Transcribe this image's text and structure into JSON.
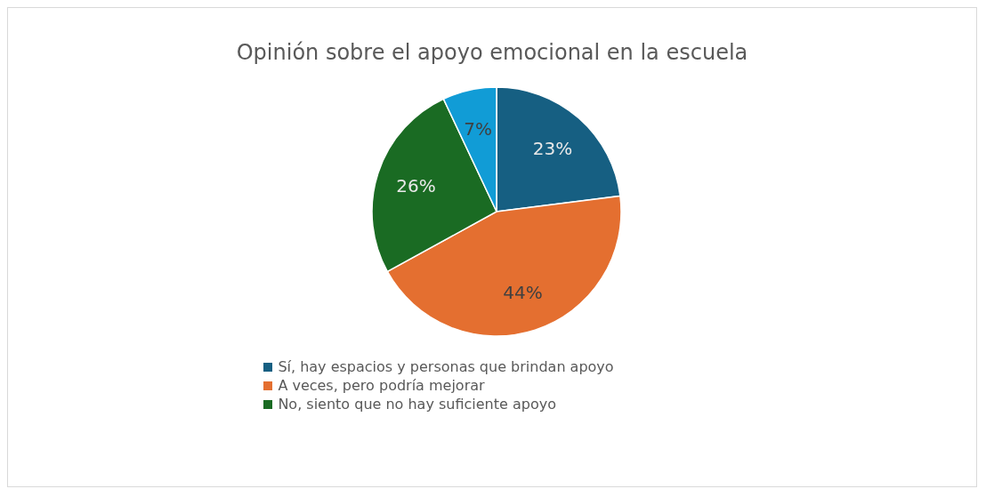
{
  "chart_data": {
    "type": "pie",
    "title": "Opinión sobre el apoyo emocional en la escuela",
    "categories": [
      "Sí, hay espacios y personas que brindan apoyo",
      "A veces, pero podría mejorar",
      "No, siento que no hay suficiente apoyo",
      null
    ],
    "values": [
      23,
      44,
      26,
      7
    ],
    "colors": [
      "#165f82",
      "#e46f30",
      "#1a6b23",
      "#119cd6"
    ],
    "value_labels": [
      "23%",
      "44%",
      "26%",
      "7%"
    ],
    "legend": "bottom"
  }
}
